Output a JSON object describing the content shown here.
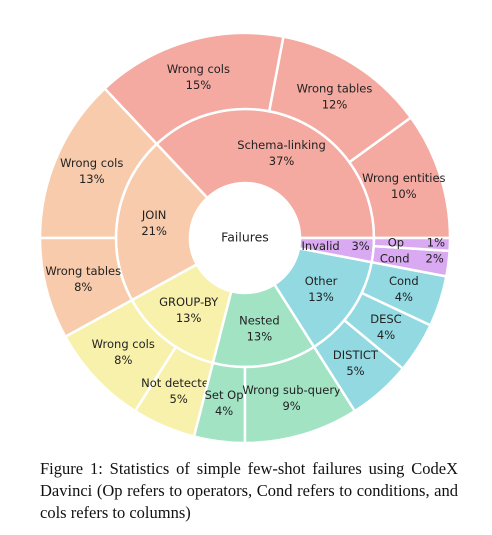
{
  "chart_data": {
    "type": "sunburst",
    "center_label": "Failures",
    "categories": [
      {
        "name": "Schema-linking",
        "value": 37,
        "value_label": "37%",
        "color": "#f4a9a1",
        "children": [
          {
            "name": "Wrong entities",
            "value": 10,
            "value_label": "10%"
          },
          {
            "name": "Wrong tables",
            "value": 12,
            "value_label": "12%"
          },
          {
            "name": "Wrong cols",
            "value": 15,
            "value_label": "15%"
          }
        ]
      },
      {
        "name": "JOIN",
        "value": 21,
        "value_label": "21%",
        "color": "#f7cbab",
        "children": [
          {
            "name": "Wrong cols",
            "value": 13,
            "value_label": "13%"
          },
          {
            "name": "Wrong tables",
            "value": 8,
            "value_label": "8%"
          }
        ]
      },
      {
        "name": "GROUP-BY",
        "value": 13,
        "value_label": "13%",
        "color": "#f8f1ac",
        "children": [
          {
            "name": "Wrong cols",
            "value": 8,
            "value_label": "8%"
          },
          {
            "name": "Not detected",
            "value": 5,
            "value_label": "5%"
          }
        ]
      },
      {
        "name": "Nested",
        "value": 13,
        "value_label": "13%",
        "color": "#a2e3c4",
        "children": [
          {
            "name": "Set Op",
            "value": 4,
            "value_label": "4%"
          },
          {
            "name": "Wrong sub-query",
            "value": 9,
            "value_label": "9%"
          }
        ]
      },
      {
        "name": "Other",
        "value": 13,
        "value_label": "13%",
        "color": "#92d9e2",
        "children": [
          {
            "name": "DISTICT",
            "value": 5,
            "value_label": "5%"
          },
          {
            "name": "DESC",
            "value": 4,
            "value_label": "4%"
          },
          {
            "name": "Cond",
            "value": 4,
            "value_label": "4%"
          }
        ]
      },
      {
        "name": "Invalid",
        "value": 3,
        "value_label": "3%",
        "color": "#d9a9f2",
        "children": [
          {
            "name": "Cond",
            "value": 2,
            "value_label": "2%"
          },
          {
            "name": "Op",
            "value": 1,
            "value_label": "1%"
          }
        ]
      }
    ]
  },
  "caption": "Figure 1: Statistics of simple few-shot failures using CodeX Davinci (Op refers to operators, Cond refers to conditions, and cols refers to columns)"
}
